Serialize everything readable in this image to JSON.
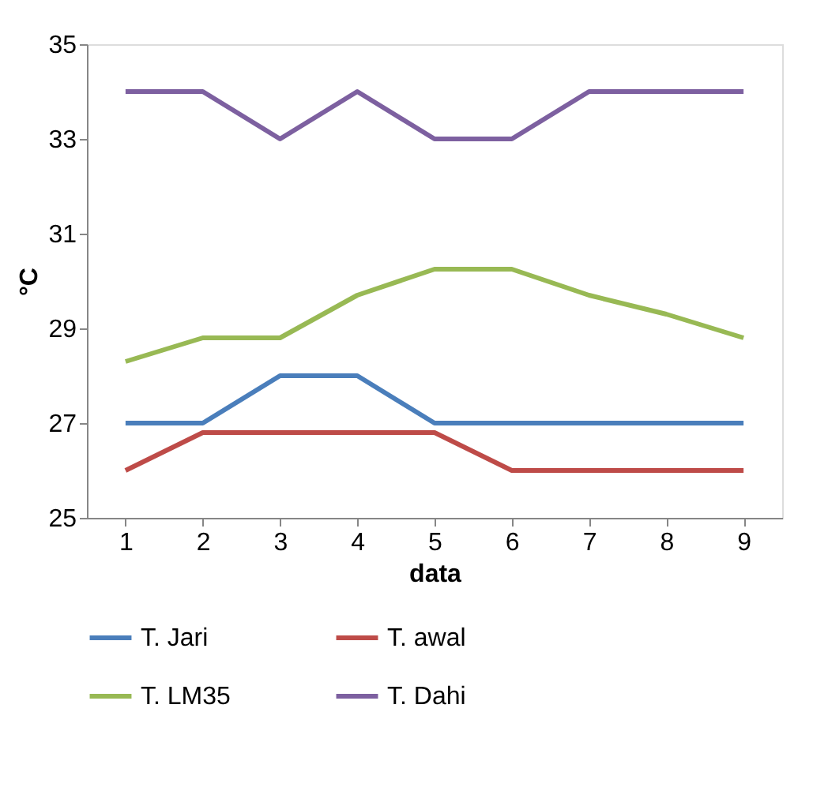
{
  "chart_data": {
    "type": "line",
    "xlabel": "data",
    "ylabel": "°C",
    "categories": [
      "1",
      "2",
      "3",
      "4",
      "5",
      "6",
      "7",
      "8",
      "9"
    ],
    "ylim": [
      25,
      35
    ],
    "yticks": [
      25,
      27,
      29,
      31,
      33,
      35
    ],
    "grid": false,
    "legend": "bottom",
    "marker": "none",
    "series": [
      {
        "name": "T. Jari",
        "color": "#4a7ebb",
        "values": [
          27,
          27,
          28,
          28,
          27,
          27,
          27,
          27,
          27
        ]
      },
      {
        "name": "T. awal",
        "color": "#be4b48",
        "values": [
          26,
          26.8,
          26.8,
          26.8,
          26.8,
          26,
          26,
          26,
          26
        ]
      },
      {
        "name": "T. LM35",
        "color": "#98b954",
        "values": [
          28.3,
          28.8,
          28.8,
          29.7,
          30.25,
          30.25,
          29.7,
          29.3,
          28.8
        ]
      },
      {
        "name": "T. Dahi",
        "color": "#7d60a0",
        "values": [
          34,
          34,
          33,
          34,
          33,
          33,
          34,
          34,
          34
        ]
      }
    ]
  }
}
